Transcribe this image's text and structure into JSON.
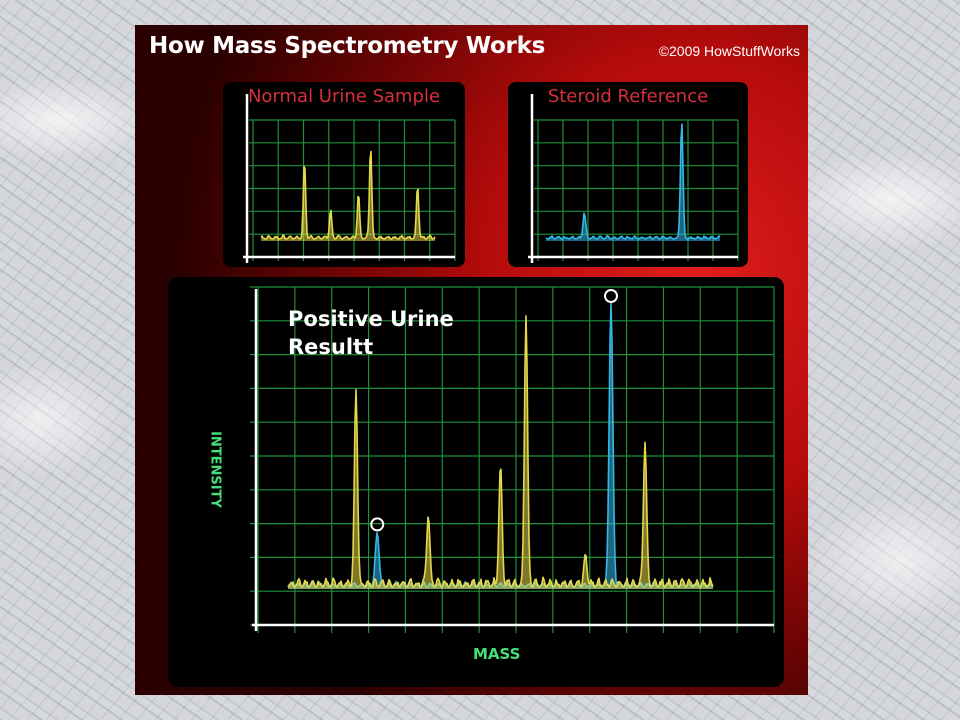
{
  "header": {
    "title": "How Mass Spectrometry Works",
    "credit": "©2009 HowStuffWorks"
  },
  "colors": {
    "panel_red": "#c80f0f",
    "grid_green": "#1f8f3a",
    "sample_yellow": "#e6d84a",
    "steroid_blue": "#35b8e8",
    "mini_title_red": "#d8303a",
    "axis_label_green": "#46e07a"
  },
  "normal_sample": {
    "title": "Normal Urine Sample",
    "series_color": "yellow",
    "peaks": [
      {
        "mass": 0.25,
        "intensity": 0.78
      },
      {
        "mass": 0.4,
        "intensity": 0.28
      },
      {
        "mass": 0.56,
        "intensity": 0.45
      },
      {
        "mass": 0.63,
        "intensity": 0.95
      },
      {
        "mass": 0.9,
        "intensity": 0.54
      }
    ]
  },
  "steroid_reference": {
    "title": "Steroid Reference",
    "series_color": "blue",
    "peaks": [
      {
        "mass": 0.22,
        "intensity": 0.22
      },
      {
        "mass": 0.78,
        "intensity": 1.0
      }
    ]
  },
  "positive_result": {
    "title": "Positive Urine Resultt",
    "y_axis_label": "INTENSITY",
    "x_axis_label": "MASS",
    "yellow_peaks": [
      {
        "mass": 0.16,
        "intensity": 0.69
      },
      {
        "mass": 0.33,
        "intensity": 0.25
      },
      {
        "mass": 0.5,
        "intensity": 0.42
      },
      {
        "mass": 0.56,
        "intensity": 0.96
      },
      {
        "mass": 0.7,
        "intensity": 0.1
      },
      {
        "mass": 0.84,
        "intensity": 0.51
      }
    ],
    "blue_peaks": [
      {
        "mass": 0.21,
        "intensity": 0.19
      },
      {
        "mass": 0.76,
        "intensity": 1.0
      }
    ],
    "circled_peaks": [
      {
        "mass": 0.21,
        "intensity": 0.19
      },
      {
        "mass": 0.76,
        "intensity": 1.0
      }
    ]
  }
}
